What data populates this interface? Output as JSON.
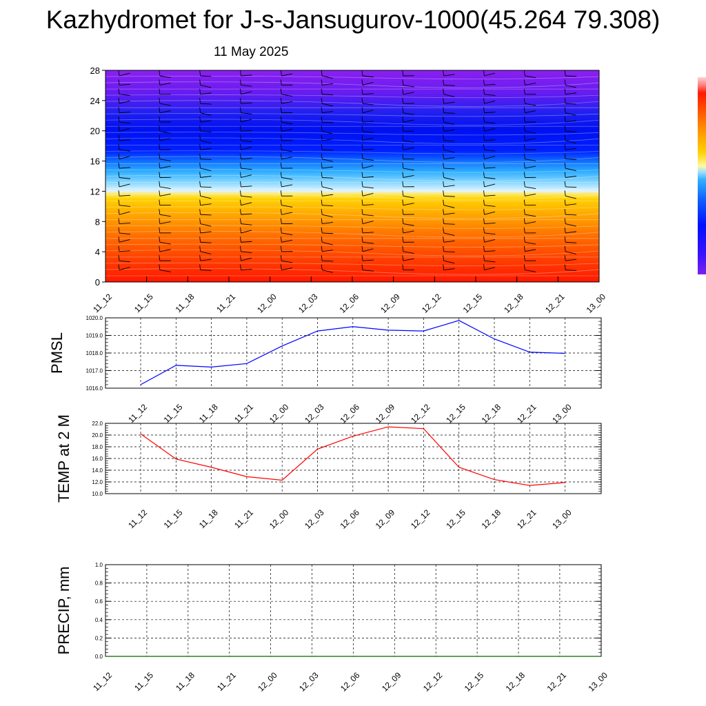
{
  "header": {
    "title": "Kazhydromet for J-s-Jansugurov-1000(45.264 79.308)",
    "subtitle": "11 May 2025"
  },
  "colors": {
    "pmsl_line": "#0000ff",
    "temp_line": "#ff0000",
    "precip_line": "#006400",
    "colorbar": [
      "#ff1a00",
      "#ff5a00",
      "#ff9a00",
      "#ffd000",
      "#fff9a0",
      "#c8f0ff",
      "#30b0ff",
      "#1060ff",
      "#0010ff",
      "#3a10ff",
      "#7a20f0",
      "#ffb0b0"
    ]
  },
  "chart_data": [
    {
      "type": "heatmap",
      "title": "",
      "categories": [
        "11_12",
        "11_15",
        "11_18",
        "11_21",
        "12_00",
        "12_03",
        "12_06",
        "12_09",
        "12_12",
        "12_15",
        "12_18",
        "12_21",
        "13_00"
      ],
      "y_ticks": [
        0,
        4,
        8,
        12,
        16,
        20,
        24,
        28
      ],
      "ylim": [
        0,
        28
      ],
      "colorbar_labels": [],
      "has_wind_barbs": true
    },
    {
      "type": "line",
      "ylabel": "PMSL",
      "categories": [
        "11_12",
        "11_15",
        "11_18",
        "11_21",
        "12_00",
        "12_03",
        "12_06",
        "12_09",
        "12_12",
        "12_15",
        "12_18",
        "12_21",
        "13_00"
      ],
      "y_ticks": [
        "1016.0",
        "1017.0",
        "1018.0",
        "1019.0",
        "1020.0"
      ],
      "ylim": [
        1016,
        1020
      ],
      "grid": true,
      "series": [
        {
          "values": [
            1016.2,
            1017.3,
            1017.2,
            1017.4,
            1018.4,
            1019.25,
            1019.5,
            1019.3,
            1019.25,
            1019.85,
            1018.8,
            1018.05,
            1017.98
          ]
        }
      ]
    },
    {
      "type": "line",
      "ylabel": "TEMP at 2 M",
      "categories": [
        "11_12",
        "11_15",
        "11_18",
        "11_21",
        "12_00",
        "12_03",
        "12_06",
        "12_09",
        "12_12",
        "12_15",
        "12_18",
        "12_21",
        "13_00"
      ],
      "y_ticks": [
        "10.0",
        "12.0",
        "14.0",
        "16.0",
        "18.0",
        "20.0",
        "22.0"
      ],
      "ylim": [
        10,
        22
      ],
      "grid": true,
      "series": [
        {
          "values": [
            20.2,
            15.9,
            14.5,
            12.9,
            12.3,
            17.6,
            19.8,
            21.4,
            21.1,
            14.5,
            12.4,
            11.4,
            11.9
          ]
        }
      ]
    },
    {
      "type": "line",
      "ylabel": "PRECIP, mm",
      "categories": [
        "11_12",
        "11_15",
        "11_18",
        "11_21",
        "12_00",
        "12_03",
        "12_06",
        "12_09",
        "12_12",
        "12_15",
        "12_18",
        "12_21",
        "13_00"
      ],
      "y_ticks": [
        "0.0",
        "0.2",
        "0.4",
        "0.6",
        "0.8",
        "1.0"
      ],
      "ylim": [
        0,
        1
      ],
      "grid": true,
      "series": [
        {
          "values": [
            0,
            0,
            0,
            0,
            0,
            0,
            0,
            0,
            0,
            0,
            0,
            0,
            0
          ]
        }
      ]
    }
  ]
}
